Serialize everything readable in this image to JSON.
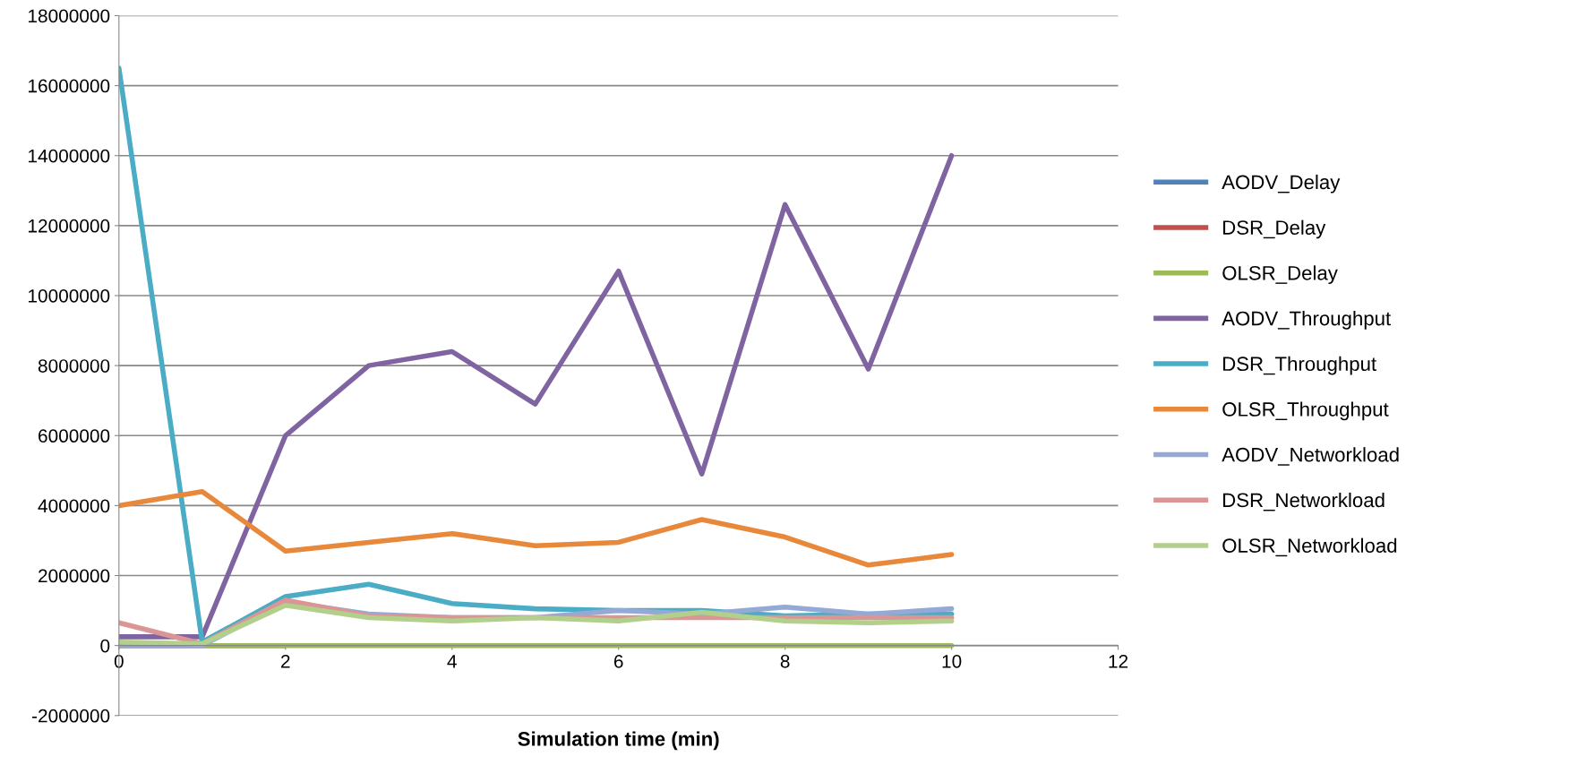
{
  "chart_data": {
    "type": "line",
    "xlabel": "Simulation time (min)",
    "x": [
      0,
      1,
      2,
      3,
      4,
      5,
      6,
      7,
      8,
      9,
      10
    ],
    "xlim": [
      0,
      12
    ],
    "xticks": [
      0,
      2,
      4,
      6,
      8,
      10,
      12
    ],
    "ylim": [
      -2000000,
      18000000
    ],
    "yticks": [
      -2000000,
      0,
      2000000,
      4000000,
      6000000,
      8000000,
      10000000,
      12000000,
      14000000,
      16000000,
      18000000
    ],
    "grid": "y",
    "legend": "right",
    "marker": "none",
    "line_style": "solid",
    "series": [
      {
        "name": "AODV_Delay",
        "color": "#4f81bd",
        "values": [
          0,
          0,
          0,
          null,
          null,
          null,
          null,
          null,
          null,
          null,
          null
        ]
      },
      {
        "name": "DSR_Delay",
        "color": "#c0504d",
        "values": [
          null,
          null,
          null,
          null,
          null,
          null,
          null,
          null,
          null,
          null,
          null
        ]
      },
      {
        "name": "OLSR_Delay",
        "color": "#9bbb59",
        "values": [
          0,
          0,
          0,
          0,
          0,
          0,
          0,
          0,
          0,
          0,
          0
        ]
      },
      {
        "name": "AODV_Throughput",
        "color": "#8064a2",
        "values": [
          250000,
          250000,
          6000000,
          8000000,
          8400000,
          6900000,
          10700000,
          4900000,
          12600000,
          7900000,
          14000000
        ]
      },
      {
        "name": "DSR_Throughput",
        "color": "#4bacc6",
        "values": [
          16500000,
          100000,
          1400000,
          1750000,
          1200000,
          1050000,
          1000000,
          1000000,
          850000,
          900000,
          900000
        ]
      },
      {
        "name": "OLSR_Throughput",
        "color": "#e8883a",
        "values": [
          4000000,
          4400000,
          2700000,
          2950000,
          3200000,
          2850000,
          2950000,
          3600000,
          3100000,
          2300000,
          2600000
        ]
      },
      {
        "name": "AODV_Networkload",
        "color": "#95a9d6",
        "values": [
          0,
          0,
          1250000,
          900000,
          800000,
          800000,
          1000000,
          900000,
          1100000,
          900000,
          1050000
        ]
      },
      {
        "name": "DSR_Networkload",
        "color": "#d99694",
        "values": [
          650000,
          50000,
          1300000,
          850000,
          800000,
          800000,
          800000,
          800000,
          800000,
          800000,
          800000
        ]
      },
      {
        "name": "OLSR_Networkload",
        "color": "#b3cf8c",
        "values": [
          100000,
          50000,
          1150000,
          800000,
          700000,
          800000,
          700000,
          950000,
          700000,
          650000,
          700000
        ]
      }
    ]
  }
}
